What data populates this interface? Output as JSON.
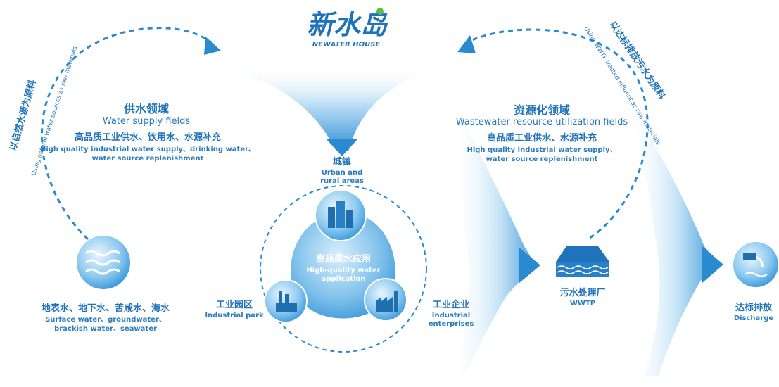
{
  "logo": {
    "wordmark": "新水岛",
    "subtitle": "NEWATER HOUSE"
  },
  "arcs": {
    "left_zh": "以自然水源为原料",
    "left_en": "Using natural water sources as raw materials",
    "right_zh": "以达标排放污水为原料",
    "right_en": "Using WWTP treated effluent as raw materials"
  },
  "water_supply": {
    "title_zh": "供水领域",
    "title_en": "Water supply fields",
    "desc_zh": "高品质工业供水、饮用水、水源补充",
    "desc_en_1": "High quality industrial water supply、drinking water、",
    "desc_en_2": "water source replenishment"
  },
  "resource": {
    "title_zh": "资源化领域",
    "title_en": "Wastewater resource utilization fields",
    "desc_zh": "高品质工业供水、水源补充",
    "desc_en_1": "High quality industrial water supply、",
    "desc_en_2": "water source replenishment"
  },
  "sources": {
    "zh": "地表水、地下水、苦咸水、海水",
    "en_1": "Surface water、groundwater、",
    "en_2": "brackish water、seawater",
    "icon": "waves-icon"
  },
  "center": {
    "zh": "高品质水应用",
    "en_1": "High-quality water",
    "en_2": "application"
  },
  "urban": {
    "zh": "城镇",
    "en_1": "Urban and",
    "en_2": "rural areas",
    "icon": "buildings-icon"
  },
  "park": {
    "zh": "工业园区",
    "en": "Industrial park",
    "icon": "industrial-park-icon"
  },
  "enterprise": {
    "zh": "工业企业",
    "en_1": "Industrial",
    "en_2": "enterprises",
    "icon": "factory-icon"
  },
  "wwtp": {
    "zh": "污水处理厂",
    "en": "WWTP",
    "icon": "wwtp-icon"
  },
  "discharge": {
    "zh": "达标排放",
    "en": "Discharge",
    "icon": "discharge-pipe-icon"
  },
  "colors": {
    "primary": "#1f73ba",
    "light": "#8cc7ee",
    "accent": "#2aa3e0"
  }
}
